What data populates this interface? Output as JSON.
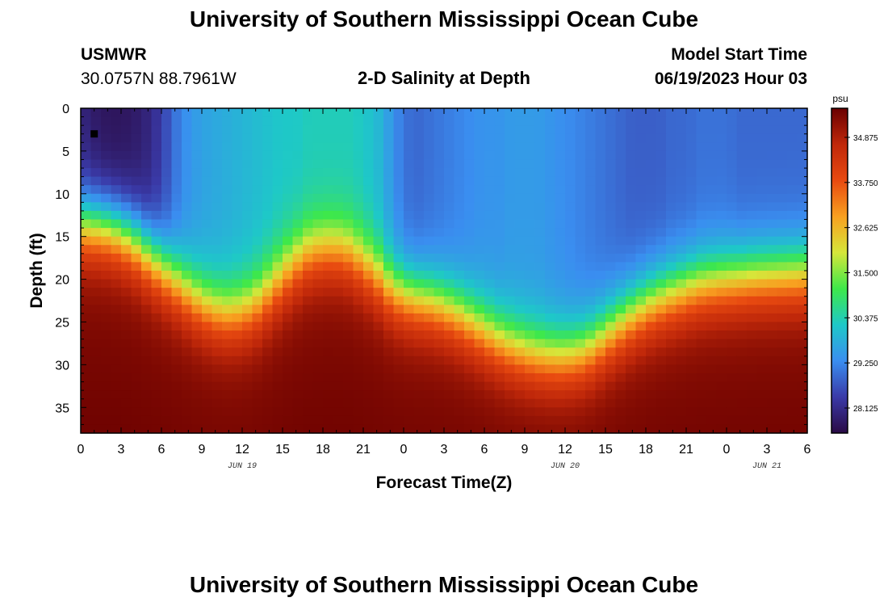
{
  "header": {
    "title": "University of Southern Mississippi Ocean Cube",
    "station_name": "USMWR",
    "station_coords": "30.0757N  88.7961W",
    "model_start_label": "Model Start Time",
    "model_start_value": "06/19/2023 Hour 03"
  },
  "footer": {
    "title": "University of Southern Mississippi Ocean Cube"
  },
  "chart_data": {
    "type": "heatmap",
    "title": "2-D Salinity at Depth",
    "xlabel": "Forecast Time(Z)",
    "ylabel": "Depth (ft)",
    "x_ticks": [
      "0",
      "3",
      "6",
      "9",
      "12",
      "15",
      "18",
      "21",
      "0",
      "3",
      "6",
      "9",
      "12",
      "15",
      "18",
      "21",
      "0",
      "3",
      "6"
    ],
    "x_range_hours": [
      0,
      54
    ],
    "date_labels": [
      {
        "label": "JUN 19",
        "hour": 12
      },
      {
        "label": "JUN 20",
        "hour": 36
      },
      {
        "label": "JUN 21",
        "hour": 51
      }
    ],
    "y_ticks": [
      0,
      5,
      10,
      15,
      20,
      25,
      30,
      35
    ],
    "y_range_ft": [
      0,
      38
    ],
    "y_inverted": true,
    "colorbar": {
      "unit": "psu",
      "min": 27.5,
      "max": 35.6,
      "ticks": [
        34.875,
        33.75,
        32.625,
        31.5,
        30.375,
        29.25,
        28.125
      ],
      "tick_labels": [
        "34.875",
        "33.750",
        "32.625",
        "31.500",
        "30.375",
        "29.250",
        "28.125"
      ],
      "colors": [
        "#2a0a45",
        "#3a3aa8",
        "#3a8ef0",
        "#1ec8c8",
        "#3ee84a",
        "#d6e63a",
        "#f8a020",
        "#e84a10",
        "#c0280a",
        "#6a0000"
      ]
    },
    "marker": {
      "hour": 1,
      "depth_ft": 3
    },
    "surface_salinity_hourly": [
      28.0,
      27.8,
      27.7,
      27.7,
      27.8,
      28.0,
      28.4,
      29.0,
      29.4,
      29.6,
      29.7,
      29.8,
      29.9,
      30.0,
      30.1,
      30.2,
      30.2,
      30.3,
      30.3,
      30.3,
      30.3,
      30.2,
      30.0,
      29.5,
      29.0,
      28.9,
      29.0,
      29.1,
      29.2,
      29.3,
      29.4,
      29.4,
      29.5,
      29.5,
      29.5,
      29.4,
      29.3,
      29.2,
      29.1,
      29.0,
      28.9,
      28.8,
      28.8,
      28.8,
      28.9,
      28.9,
      29.0,
      29.0,
      29.0,
      28.9,
      28.9,
      28.9,
      28.9,
      28.9,
      28.9
    ],
    "halocline_depth_ft_hourly": [
      13.5,
      13.6,
      13.9,
      14.5,
      15.5,
      17.0,
      18.5,
      20.0,
      21.5,
      22.8,
      23.6,
      24.0,
      23.8,
      23.0,
      21.5,
      19.8,
      18.2,
      17.0,
      16.5,
      16.5,
      17.0,
      18.2,
      19.5,
      21.0,
      21.8,
      22.2,
      22.6,
      23.2,
      24.0,
      25.0,
      26.0,
      27.0,
      27.8,
      28.4,
      28.8,
      29.0,
      29.0,
      28.6,
      27.8,
      26.5,
      25.2,
      24.0,
      23.0,
      22.2,
      21.6,
      21.0,
      20.5,
      20.2,
      20.0,
      19.8,
      19.6,
      19.5,
      19.4,
      19.3,
      19.2
    ],
    "bottom_salinity": 35.3
  }
}
